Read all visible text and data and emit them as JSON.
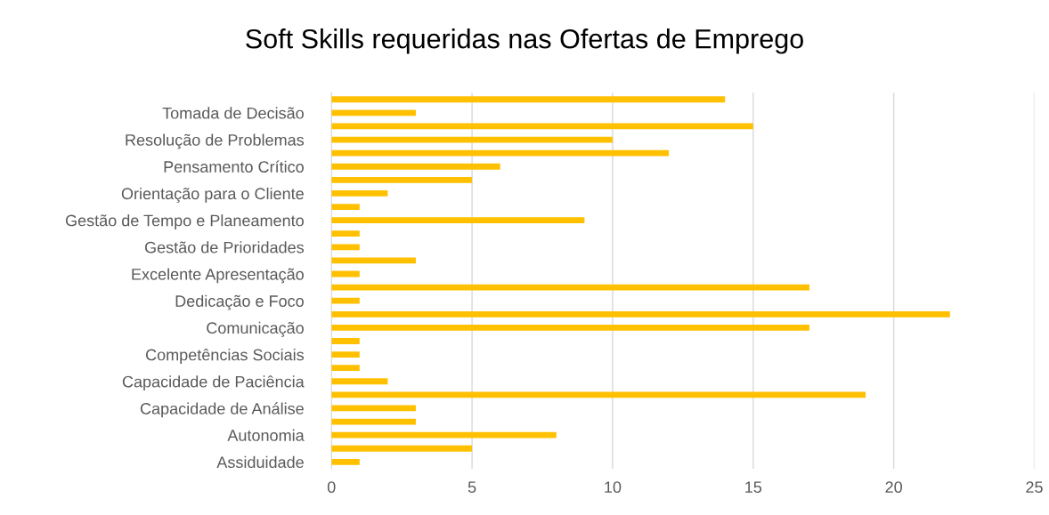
{
  "chart_data": {
    "type": "bar",
    "orientation": "horizontal",
    "title": "Soft Skills requeridas nas Ofertas de Emprego",
    "categories": [
      null,
      "Tomada de Decisão",
      null,
      "Resolução de Problemas",
      null,
      "Pensamento Crítico",
      null,
      "Orientação para o Cliente",
      null,
      "Gestão de Tempo e Planeamento",
      null,
      "Gestão de Prioridades",
      null,
      "Excelente Apresentação",
      null,
      "Dedicação e Foco",
      null,
      "Comunicação",
      null,
      "Competências Sociais",
      null,
      "Capacidade de Paciência",
      null,
      "Capacidade de Análise",
      null,
      "Autonomia",
      null,
      "Assiduidade"
    ],
    "values": [
      14,
      3,
      15,
      10,
      12,
      6,
      5,
      2,
      1,
      9,
      1,
      1,
      3,
      1,
      17,
      1,
      22,
      17,
      1,
      1,
      1,
      2,
      19,
      3,
      3,
      8,
      5,
      1
    ],
    "color": "#ffc000",
    "xlim": [
      0,
      25
    ],
    "xticks": [
      0,
      5,
      10,
      15,
      20,
      25
    ],
    "grid": "x"
  }
}
